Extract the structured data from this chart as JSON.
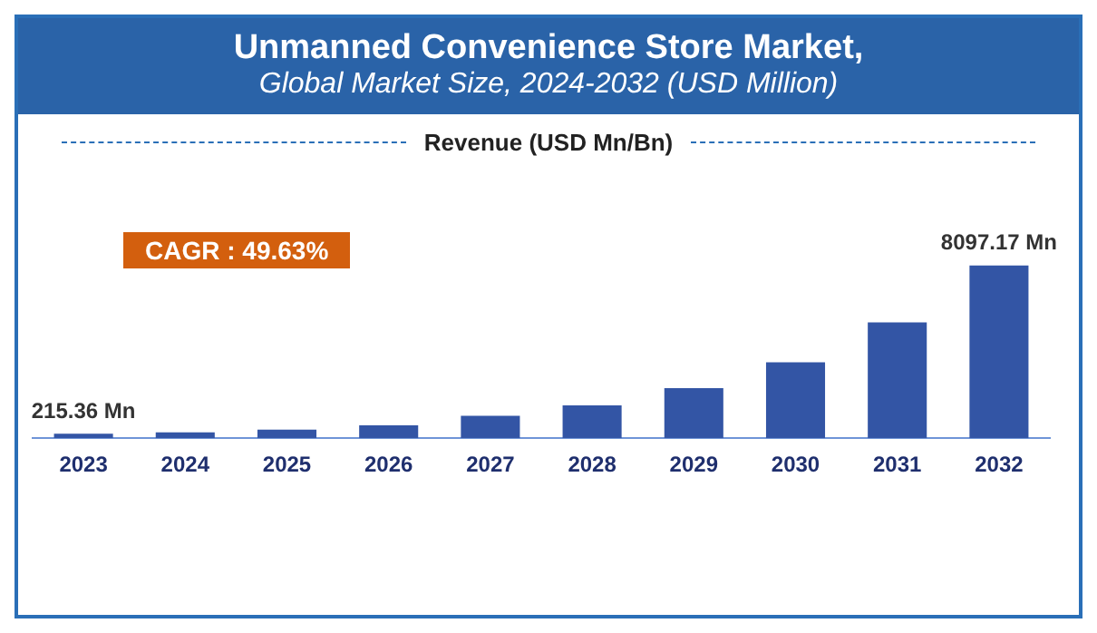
{
  "chart_data": {
    "type": "bar",
    "title": "Unmanned Convenience Store Market,",
    "subtitle": "Global Market Size, 2024-2032 (USD Million)",
    "annotations": [
      "Revenue (USD Mn/Bn)",
      "CAGR : 49.63%"
    ],
    "categories": [
      "2023",
      "2024",
      "2025",
      "2026",
      "2027",
      "2028",
      "2029",
      "2030",
      "2031",
      "2032"
    ],
    "values": [
      215.36,
      275,
      405,
      600,
      1050,
      1540,
      2350,
      3560,
      5430,
      8097.17
    ],
    "value_labels": [
      "215.36 Mn",
      null,
      null,
      null,
      null,
      null,
      null,
      null,
      null,
      "8097.17 Mn"
    ],
    "color": "#3355a5",
    "legend": false
  }
}
